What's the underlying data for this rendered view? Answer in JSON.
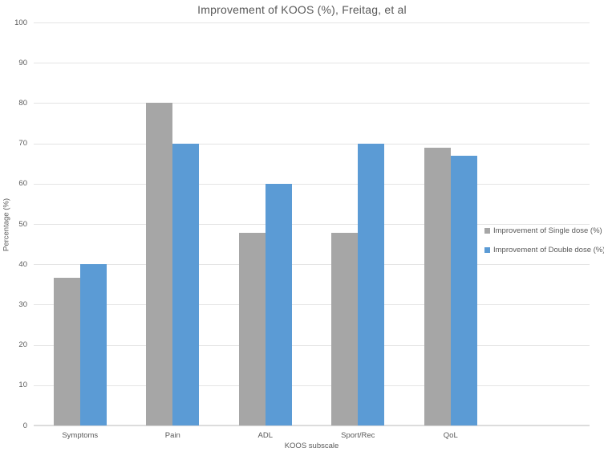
{
  "title": "Improvement of KOOS (%), Freitag, et al",
  "colors": {
    "text": "#595959",
    "gridline": "#e4e4e4",
    "axis_line": "#dcdcdc",
    "background": "#ffffff",
    "series_gray": "#a6a6a6",
    "series_blue": "#5b9bd5"
  },
  "chart_data": {
    "type": "bar",
    "categories": [
      "Symptoms",
      "Pain",
      "ADL",
      "Sport/Rec",
      "QoL"
    ],
    "series": [
      {
        "name": "Improvement of Single dose (%)",
        "color": "#a6a6a6",
        "values": [
          36.7,
          80,
          47.8,
          47.8,
          69
        ]
      },
      {
        "name": "Improvement of Double dose (%)",
        "color": "#5b9bd5",
        "values": [
          40,
          70,
          60,
          70,
          67
        ]
      }
    ],
    "title": "Improvement of KOOS (%), Freitag, et al",
    "xlabel": "KOOS subscale",
    "ylabel": "Percentage (%)",
    "ylim": [
      0,
      100
    ],
    "ytick_step": 10,
    "grid": true,
    "legend_position": "right-inside",
    "extra_category_slots": 1
  }
}
